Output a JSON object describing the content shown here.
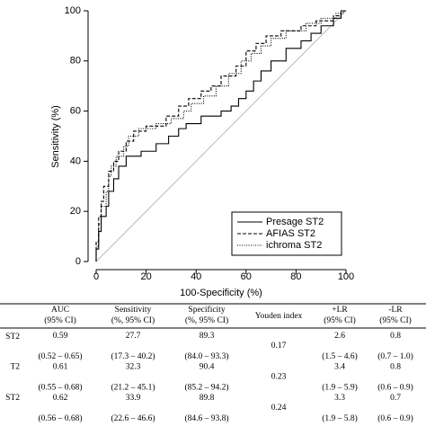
{
  "chart_data": {
    "type": "line",
    "x_label": "100-Specificity (%)",
    "y_label": "Sensitivity (%)",
    "xlim": [
      0,
      100
    ],
    "ylim": [
      0,
      100
    ],
    "xticks": [
      0,
      20,
      40,
      60,
      80,
      100
    ],
    "yticks": [
      0,
      20,
      40,
      60,
      80,
      100
    ],
    "diagonal": true,
    "legend": "lower right",
    "series": [
      {
        "name": "Presage ST2",
        "color": "#000000",
        "style": "solid",
        "x": [
          0,
          0,
          1,
          1,
          2,
          2,
          4,
          4,
          5,
          5,
          7,
          7,
          9,
          9,
          12,
          12,
          18,
          18,
          24,
          24,
          29,
          29,
          33,
          33,
          36,
          36,
          42,
          42,
          50,
          50,
          54,
          54,
          57,
          57,
          60,
          60,
          63,
          63,
          66,
          66,
          70,
          70,
          76,
          76,
          82,
          82,
          86,
          86,
          90,
          90,
          95,
          95,
          98,
          98,
          100
        ],
        "values": [
          0,
          5,
          5,
          12,
          12,
          18,
          18,
          22,
          22,
          28,
          28,
          33,
          33,
          38,
          38,
          42,
          42,
          44,
          44,
          47,
          47,
          50,
          50,
          53,
          53,
          55,
          55,
          58,
          58,
          60,
          60,
          62,
          62,
          65,
          65,
          68,
          68,
          72,
          72,
          76,
          76,
          80,
          80,
          85,
          85,
          88,
          88,
          91,
          91,
          94,
          94,
          97,
          97,
          100,
          100
        ]
      },
      {
        "name": "AFIAS ST2",
        "color": "#000000",
        "style": "dashed",
        "x": [
          0,
          0,
          1,
          1,
          2,
          2,
          3,
          3,
          5,
          5,
          7,
          7,
          9,
          9,
          12,
          12,
          15,
          15,
          20,
          20,
          28,
          28,
          33,
          33,
          37,
          37,
          42,
          42,
          46,
          46,
          50,
          50,
          56,
          56,
          60,
          60,
          64,
          64,
          68,
          68,
          74,
          74,
          82,
          82,
          88,
          88,
          95,
          95,
          98,
          98,
          100
        ],
        "values": [
          0,
          8,
          8,
          18,
          18,
          24,
          24,
          30,
          30,
          36,
          36,
          40,
          40,
          44,
          44,
          48,
          48,
          52,
          52,
          54,
          54,
          58,
          58,
          62,
          62,
          65,
          65,
          68,
          68,
          70,
          70,
          74,
          74,
          78,
          78,
          84,
          84,
          87,
          87,
          90,
          90,
          92,
          92,
          94,
          94,
          96,
          96,
          98,
          98,
          100,
          100
        ]
      },
      {
        "name": "ichroma ST2",
        "color": "#000000",
        "style": "dotted",
        "x": [
          0,
          0,
          1,
          1,
          2,
          2,
          4,
          4,
          5,
          5,
          6,
          6,
          8,
          8,
          11,
          11,
          13,
          13,
          17,
          17,
          24,
          24,
          30,
          30,
          35,
          35,
          38,
          38,
          43,
          43,
          48,
          48,
          53,
          53,
          58,
          58,
          62,
          62,
          66,
          66,
          70,
          70,
          76,
          76,
          84,
          84,
          90,
          90,
          96,
          96,
          99,
          99,
          100
        ],
        "values": [
          0,
          6,
          6,
          15,
          15,
          22,
          22,
          28,
          28,
          34,
          34,
          38,
          38,
          42,
          42,
          46,
          46,
          50,
          50,
          53,
          53,
          55,
          55,
          57,
          57,
          60,
          60,
          63,
          63,
          66,
          66,
          70,
          70,
          75,
          75,
          80,
          80,
          83,
          83,
          86,
          86,
          89,
          89,
          92,
          92,
          95,
          95,
          97,
          97,
          99,
          99,
          100,
          100
        ]
      }
    ]
  },
  "table": {
    "header": [
      [
        "AUC",
        "(95% CI)"
      ],
      [
        "Sensitivity",
        "(%, 95% CI)"
      ],
      [
        "Specificity",
        "(%, 95% CI)"
      ],
      [
        "Youden index"
      ],
      [
        "+LR",
        "(95% CI)"
      ],
      [
        "-LR",
        "(95% CI)"
      ]
    ],
    "rows": [
      {
        "label": "ST2",
        "cells": [
          [
            "0.59",
            "(0.52 – 0.65)"
          ],
          [
            "27.7",
            "(17.3 – 40.2)"
          ],
          [
            "89.3",
            "(84.0 – 93.3)"
          ],
          [
            "0.17"
          ],
          [
            "2.6",
            "(1.5 – 4.6)"
          ],
          [
            "0.8",
            "(0.7 – 1.0)"
          ]
        ]
      },
      {
        "label": "T2",
        "cells": [
          [
            "0.61",
            "(0.55 – 0.68)"
          ],
          [
            "32.3",
            "(21.2 – 45.1)"
          ],
          [
            "90.4",
            "(85.2 – 94.2)"
          ],
          [
            "0.23"
          ],
          [
            "3.4",
            "(1.9 – 5.9)"
          ],
          [
            "0.8",
            "(0.6 – 0.9)"
          ]
        ]
      },
      {
        "label": "ST2",
        "cells": [
          [
            "0.62",
            "(0.56 – 0.68)"
          ],
          [
            "33.9",
            "(22.6 – 46.6)"
          ],
          [
            "89.8",
            "(84.6 – 93.8)"
          ],
          [
            "0.24"
          ],
          [
            "3.3",
            "(1.9 – 5.8)"
          ],
          [
            "0.7",
            "(0.6 – 0.9)"
          ]
        ]
      }
    ]
  }
}
